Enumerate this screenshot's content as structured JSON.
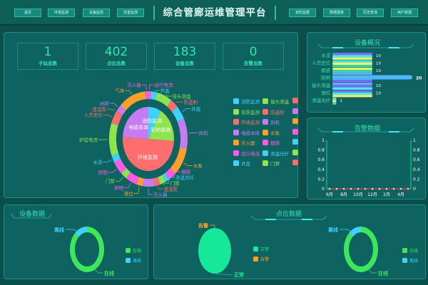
{
  "header": {
    "title": "综合管廊运维管理平台",
    "left_nav": [
      "首页",
      "环境监测",
      "设备监控",
      "灾害监测"
    ],
    "right_nav": [
      "安防监督",
      "数据报表",
      "历史查询",
      "用户管理"
    ]
  },
  "stats": [
    {
      "value": "1",
      "label": "子站总数"
    },
    {
      "value": "402",
      "label": "点位总数"
    },
    {
      "value": "183",
      "label": "设备总数"
    },
    {
      "value": "0",
      "label": "告警总数"
    }
  ],
  "colors": {
    "cyan": "#3fd2ff",
    "green": "#8fe34e",
    "red": "#ff6e6e",
    "purple": "#c57cf2",
    "orange": "#ffa029",
    "magenta": "#ff5ae8"
  },
  "system_chart": {
    "inner": [
      {
        "name": "消防监测",
        "value": 8,
        "color": "#3fd2ff"
      },
      {
        "name": "安防监测",
        "value": 18,
        "color": "#8fe34e"
      },
      {
        "name": "环境监测",
        "value": 50,
        "color": "#ff6e6e"
      },
      {
        "name": "电缆本体",
        "value": 24,
        "color": "#c57cf2"
      }
    ],
    "outer": [
      {
        "name": "气体",
        "value": 14,
        "color": "#ffa029"
      },
      {
        "name": "灭火器",
        "value": 1,
        "color": "#ff5ae8"
      },
      {
        "name": "运行电流",
        "value": 2,
        "color": "#ff5ae8"
      },
      {
        "name": "井盖",
        "value": 3,
        "color": "#3fd2ff"
      },
      {
        "name": "接头测温",
        "value": 8,
        "color": "#8fe34e"
      },
      {
        "name": "防盗刺",
        "value": 4,
        "color": "#ff6e6e"
      },
      {
        "name": "井盖",
        "value": 6,
        "color": "#3fd2ff"
      },
      {
        "name": "风机",
        "value": 13,
        "color": "#c57cf2"
      },
      {
        "name": "水泵",
        "value": 12,
        "color": "#ffa029"
      },
      {
        "name": "烟感",
        "value": 4,
        "color": "#ff5ae8"
      },
      {
        "name": "测温光纤",
        "value": 2,
        "color": "#3fd2ff"
      },
      {
        "name": "门禁",
        "value": 3,
        "color": "#8fe34e"
      },
      {
        "name": "温湿度",
        "value": 3,
        "color": "#ff6e6e"
      },
      {
        "name": "灭火器",
        "value": 6,
        "color": "#c57cf2"
      },
      {
        "name": "液位",
        "value": 3,
        "color": "#ffa029"
      },
      {
        "name": "照明",
        "value": 6,
        "color": "#ff5ae8"
      },
      {
        "name": "门禁",
        "value": 3,
        "color": "#8fe34e"
      },
      {
        "name": "照明",
        "value": 6,
        "color": "#ff5ae8"
      },
      {
        "name": "水浸",
        "value": 3,
        "color": "#3fd2ff"
      },
      {
        "name": "护层电流",
        "value": 14,
        "color": "#8fe34e"
      },
      {
        "name": "人员定位",
        "value": 5,
        "color": "#ff6e6e"
      },
      {
        "name": "温湿度",
        "value": 1,
        "color": "#ff6e6e"
      },
      {
        "name": "对射",
        "value": 3,
        "color": "#c57cf2"
      }
    ],
    "legend": [
      {
        "name": "消防监测",
        "color": "#3fd2ff"
      },
      {
        "name": "安防监测",
        "color": "#8fe34e"
      },
      {
        "name": "环境监测",
        "color": "#ff6e6e"
      },
      {
        "name": "电缆本体",
        "color": "#c57cf2"
      },
      {
        "name": "灭火器",
        "color": "#ffa029"
      },
      {
        "name": "运行电流",
        "color": "#ff5ae8"
      },
      {
        "name": "井盖",
        "color": "#3fd2ff"
      },
      {
        "name": "接头测温",
        "color": "#8fe34e"
      },
      {
        "name": "防盗刺",
        "color": "#ff6e6e"
      },
      {
        "name": "风机",
        "color": "#c57cf2"
      },
      {
        "name": "水泵",
        "color": "#ffa029"
      },
      {
        "name": "烟感",
        "color": "#ff5ae8"
      },
      {
        "name": "测温光纤",
        "color": "#3fd2ff"
      },
      {
        "name": "门禁",
        "color": "#8fe34e"
      }
    ],
    "legend_cut_colors": [
      "#ff6e6e",
      "#c57cf2",
      "#ffa029",
      "#ff5ae8",
      "#3fd2ff",
      "#8fe34e",
      "#ff6e6e"
    ]
  },
  "device_overview": {
    "title": "设备概况",
    "categories": [
      "水浸",
      "人员定位",
      "烟感",
      "照明",
      "接头测温",
      "液位",
      "测温光纤"
    ],
    "values": [
      10,
      10,
      10,
      20,
      10,
      10,
      1
    ]
  },
  "alarm_chart": {
    "title": "告警数据",
    "type": "line",
    "x": [
      "6月",
      "7月",
      "8月",
      "9月",
      "10月",
      "11月",
      "12月",
      "1月",
      "2月",
      "3月",
      "4月",
      "5月"
    ],
    "xtick_labels": [
      "6月",
      "8月",
      "10月",
      "12月",
      "2月",
      "4月"
    ],
    "values": [
      0,
      0,
      0,
      0,
      0,
      0,
      0,
      0,
      0,
      0,
      0,
      0
    ],
    "ylim": [
      0,
      1
    ],
    "yticks": [
      "0",
      "0.2",
      "0.4",
      "0.6",
      "0.8",
      "1"
    ]
  },
  "device_data": {
    "title": "设备数据",
    "series": [
      {
        "name": "在线",
        "value": 88,
        "color": "#3ee65a"
      },
      {
        "name": "离线",
        "value": 12,
        "color": "#3fd2ff"
      }
    ]
  },
  "point_data": {
    "title": "点位数据",
    "pie": [
      {
        "name": "正常",
        "value": 100,
        "color": "#16e89a"
      },
      {
        "name": "告警",
        "value": 0,
        "color": "#ffa029"
      }
    ],
    "donut": [
      {
        "name": "在线",
        "value": 88,
        "color": "#3ee65a"
      },
      {
        "name": "离线",
        "value": 12,
        "color": "#3fd2ff"
      }
    ]
  }
}
